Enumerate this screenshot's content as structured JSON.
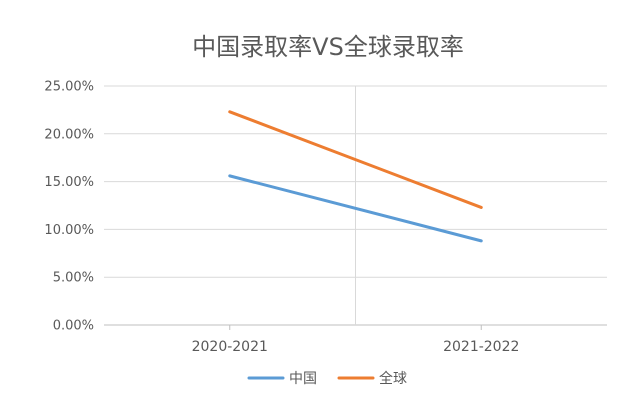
{
  "chart_data": {
    "type": "line",
    "title": "中国录取率VS全球录取率",
    "categories": [
      "2020-2021",
      "2021-2022"
    ],
    "series": [
      {
        "name": "中国",
        "values": [
          15.6,
          8.8
        ],
        "color": "#5b9bd5"
      },
      {
        "name": "全球",
        "values": [
          22.3,
          12.3
        ],
        "color": "#ed7d31"
      }
    ],
    "ylim": [
      0,
      25
    ],
    "yticks": [
      0,
      5,
      10,
      15,
      20,
      25
    ],
    "ytick_labels": [
      "0.00%",
      "5.00%",
      "10.00%",
      "15.00%",
      "20.00%",
      "25.00%"
    ],
    "grid": true,
    "legend_position": "bottom"
  }
}
